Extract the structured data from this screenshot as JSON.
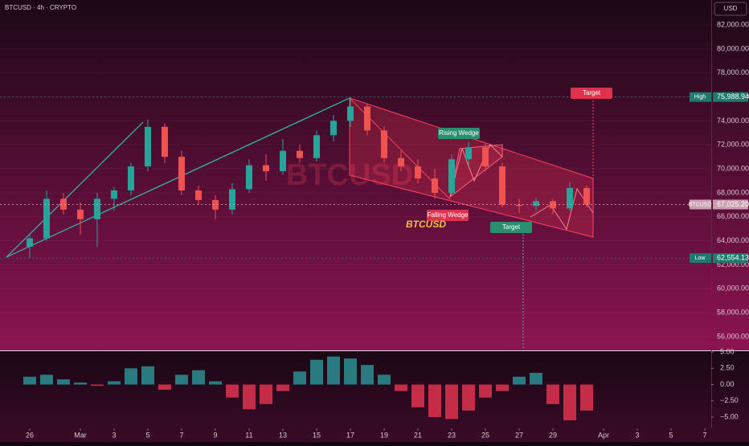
{
  "chart_data": [
    {
      "type": "candlestick",
      "title": "BTCUSD · 4h · CRYPTO",
      "unit_label": "USD",
      "x": [
        0,
        1,
        2,
        3,
        4,
        5,
        6,
        7,
        8,
        9,
        10,
        11,
        12,
        13,
        14,
        15,
        16,
        17,
        18,
        19,
        20,
        21,
        22,
        23,
        24,
        25,
        26,
        27,
        28,
        29,
        30,
        31,
        32,
        33
      ],
      "open": [
        63500,
        64200,
        67500,
        66600,
        65800,
        67500,
        68200,
        70200,
        73500,
        71000,
        68200,
        67400,
        66600,
        68300,
        70300,
        69800,
        71500,
        70900,
        72800,
        74000,
        75200,
        73200,
        70900,
        70200,
        69200,
        68000,
        70800,
        71800,
        70200,
        67000,
        66900,
        67300,
        66700,
        68400
      ],
      "high": [
        64500,
        68200,
        68000,
        67200,
        68000,
        68500,
        70500,
        74100,
        73800,
        71500,
        68600,
        67800,
        68800,
        70800,
        71200,
        72500,
        72000,
        73200,
        74500,
        75988.94,
        75400,
        73500,
        71500,
        70800,
        70000,
        71200,
        72200,
        72100,
        70500,
        67500,
        67600,
        67500,
        68900,
        68600
      ],
      "low": [
        62554.13,
        64000,
        66200,
        64500,
        63500,
        66500,
        67800,
        69800,
        70500,
        67800,
        67000,
        65800,
        66200,
        68000,
        69000,
        69500,
        70500,
        70600,
        72300,
        73500,
        72800,
        70500,
        69800,
        68800,
        67500,
        67800,
        70300,
        69800,
        66800,
        66300,
        66500,
        66200,
        66500,
        66800
      ],
      "close": [
        64200,
        67500,
        66600,
        65800,
        67500,
        68200,
        70200,
        73500,
        71000,
        68200,
        67400,
        66600,
        68300,
        70300,
        69800,
        71500,
        70900,
        72800,
        74000,
        75200,
        73200,
        70900,
        70200,
        69200,
        68000,
        70800,
        71800,
        70200,
        67000,
        66900,
        67300,
        66700,
        68400,
        67025.2
      ],
      "up_color": "#26a69a",
      "down_color": "#ef5350",
      "xlim": [
        -1.76,
        40.38
      ],
      "ylim": [
        54860,
        84080
      ],
      "yticks": [
        {
          "value": 56000,
          "label": "56,000.00"
        },
        {
          "value": 58000,
          "label": "58,000.00"
        },
        {
          "value": 60000,
          "label": "60,000.00"
        },
        {
          "value": 62000,
          "label": "62,000.00"
        },
        {
          "value": 64000,
          "label": "64,000.00"
        },
        {
          "value": 66000,
          "label": "66,000.00"
        },
        {
          "value": 68000,
          "label": "68,000.00"
        },
        {
          "value": 70000,
          "label": "70,000.00"
        },
        {
          "value": 72000,
          "label": "72,000.00"
        },
        {
          "value": 74000,
          "label": "74,000.00"
        },
        {
          "value": 76000,
          "label": "76,000.00"
        },
        {
          "value": 78000,
          "label": "78,000.00"
        },
        {
          "value": 80000,
          "label": "80,000.00"
        },
        {
          "value": 82000,
          "label": "82,000.00"
        }
      ],
      "price_lines": [
        {
          "name": "High",
          "value": 75988.94,
          "value_label": "75,988.94",
          "color": "#1f7a6e"
        },
        {
          "name": "BTCUSD",
          "value": 67025.2,
          "value_label": "67,025.20",
          "color": "#c9a0b0"
        },
        {
          "name": "Low",
          "value": 62554.13,
          "value_label": "62,554.13",
          "color": "#1f7a6e"
        }
      ],
      "annotations": [
        "BTCUSD",
        "Rising Wedge",
        "Falling Wedge",
        "Target",
        "Target",
        "BTCUSD"
      ]
    },
    {
      "type": "bar",
      "x": [
        0,
        1,
        2,
        3,
        4,
        5,
        6,
        7,
        8,
        9,
        10,
        11,
        12,
        13,
        14,
        15,
        16,
        17,
        18,
        19,
        20,
        21,
        22,
        23,
        24,
        25,
        26,
        27,
        28,
        29,
        30,
        31,
        32,
        33
      ],
      "values": [
        1.2,
        1.5,
        0.8,
        0.3,
        -0.2,
        0.5,
        2.5,
        2.8,
        -0.8,
        1.5,
        2.2,
        0.5,
        -2,
        -3.8,
        -3,
        -1,
        2,
        3.8,
        4.3,
        4,
        3,
        1.5,
        -1,
        -3.5,
        -5,
        -5.3,
        -4,
        -2,
        -1,
        1.2,
        1.8,
        -3,
        -5.5,
        -4
      ],
      "positive_color": "#2a8f93",
      "negative_color": "#e0324f",
      "xlim": [
        -1.76,
        40.38
      ],
      "ylim": [
        -6.73,
        5.25
      ],
      "yticks": [
        {
          "value": 5,
          "label": "5.00"
        },
        {
          "value": 2.5,
          "label": "2.50"
        },
        {
          "value": 0,
          "label": "0.00"
        },
        {
          "value": -2.5,
          "label": "−2.50"
        },
        {
          "value": -5,
          "label": "−5.00"
        }
      ],
      "xticks": [
        {
          "value": 0,
          "label": "26"
        },
        {
          "value": 3,
          "label": "Mar"
        },
        {
          "value": 5,
          "label": "3"
        },
        {
          "value": 7,
          "label": "5"
        },
        {
          "value": 9,
          "label": "7"
        },
        {
          "value": 11,
          "label": "9"
        },
        {
          "value": 13,
          "label": "11"
        },
        {
          "value": 15,
          "label": "13"
        },
        {
          "value": 17,
          "label": "15"
        },
        {
          "value": 19,
          "label": "17"
        },
        {
          "value": 21,
          "label": "19"
        },
        {
          "value": 23,
          "label": "21"
        },
        {
          "value": 25,
          "label": "23"
        },
        {
          "value": 27,
          "label": "25"
        },
        {
          "value": 29,
          "label": "27"
        },
        {
          "value": 31,
          "label": "29"
        },
        {
          "value": 34,
          "label": "Apr"
        },
        {
          "value": 36,
          "label": "3"
        },
        {
          "value": 38,
          "label": "5"
        },
        {
          "value": 40,
          "label": "7"
        }
      ]
    }
  ]
}
